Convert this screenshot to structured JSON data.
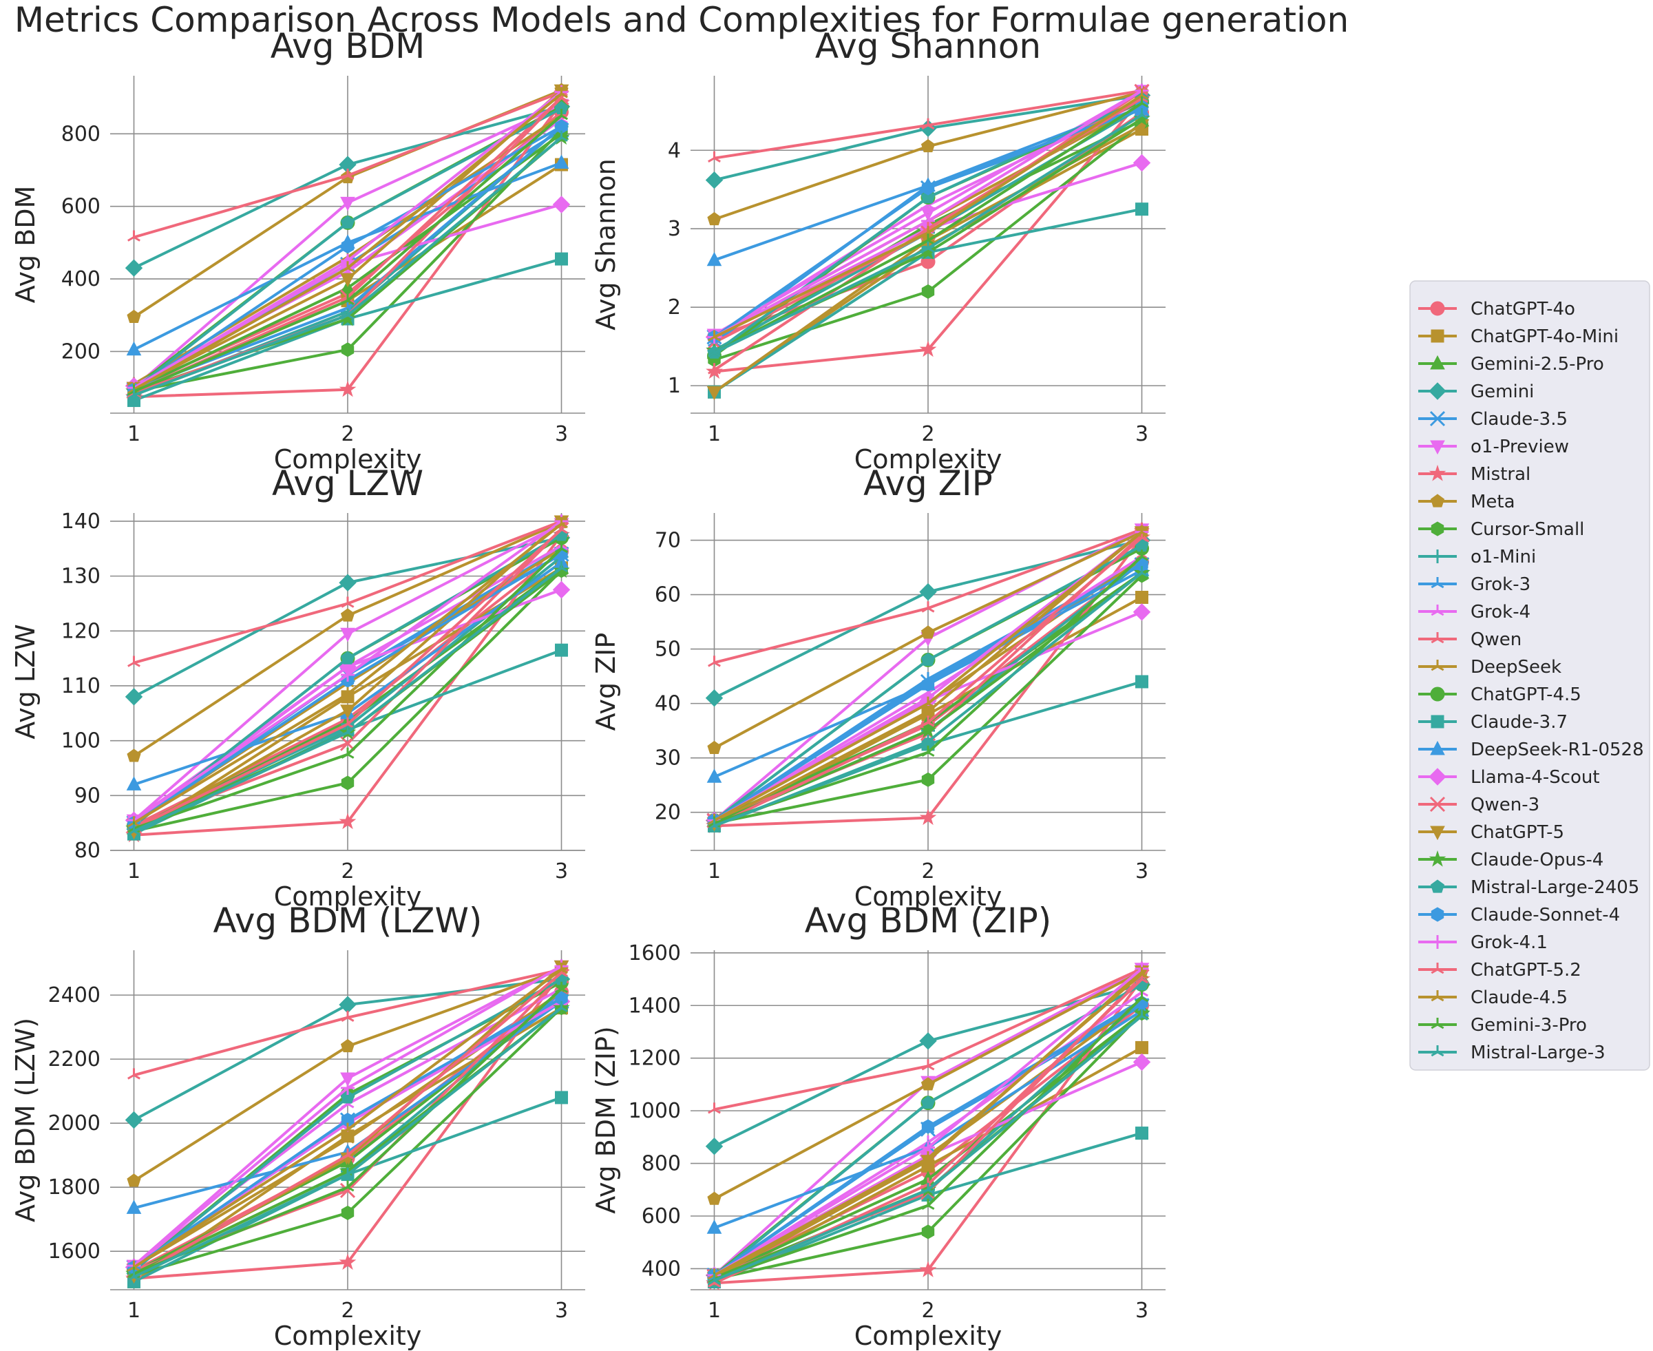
{
  "title": "Metrics Comparison Across Models and Complexities for Formulae generation",
  "chart_data": {
    "type": "line",
    "x": [
      1,
      2,
      3
    ],
    "series_styles": [
      {
        "name": "ChatGPT-4o",
        "color": "#f0687b",
        "marker": "circle"
      },
      {
        "name": "ChatGPT-4o-Mini",
        "color": "#b8922e",
        "marker": "square"
      },
      {
        "name": "Gemini-2.5-Pro",
        "color": "#4fae3a",
        "marker": "triangle-up"
      },
      {
        "name": "Gemini",
        "color": "#36a9a0",
        "marker": "diamond"
      },
      {
        "name": "Claude-3.5",
        "color": "#3c9ae0",
        "marker": "x"
      },
      {
        "name": "o1-Preview",
        "color": "#e86af0",
        "marker": "triangle-down"
      },
      {
        "name": "Mistral",
        "color": "#f0687b",
        "marker": "star"
      },
      {
        "name": "Meta",
        "color": "#b8922e",
        "marker": "pentagon"
      },
      {
        "name": "Cursor-Small",
        "color": "#4fae3a",
        "marker": "hexagon"
      },
      {
        "name": "o1-Mini",
        "color": "#36a9a0",
        "marker": "plus"
      },
      {
        "name": "Grok-3",
        "color": "#3c9ae0",
        "marker": "tri"
      },
      {
        "name": "Grok-4",
        "color": "#e86af0",
        "marker": "tri"
      },
      {
        "name": "Qwen",
        "color": "#f0687b",
        "marker": "tri"
      },
      {
        "name": "DeepSeek",
        "color": "#b8922e",
        "marker": "tri"
      },
      {
        "name": "ChatGPT-4.5",
        "color": "#4fae3a",
        "marker": "circle"
      },
      {
        "name": "Claude-3.7",
        "color": "#36a9a0",
        "marker": "square"
      },
      {
        "name": "DeepSeek-R1-0528",
        "color": "#3c9ae0",
        "marker": "triangle-up"
      },
      {
        "name": "Llama-4-Scout",
        "color": "#e86af0",
        "marker": "diamond"
      },
      {
        "name": "Qwen-3",
        "color": "#f0687b",
        "marker": "x"
      },
      {
        "name": "ChatGPT-5",
        "color": "#b8922e",
        "marker": "triangle-down"
      },
      {
        "name": "Claude-Opus-4",
        "color": "#4fae3a",
        "marker": "star"
      },
      {
        "name": "Mistral-Large-2405",
        "color": "#36a9a0",
        "marker": "pentagon"
      },
      {
        "name": "Claude-Sonnet-4",
        "color": "#3c9ae0",
        "marker": "hexagon"
      },
      {
        "name": "Grok-4.1",
        "color": "#e86af0",
        "marker": "plus"
      },
      {
        "name": "ChatGPT-5.2",
        "color": "#f0687b",
        "marker": "tri"
      },
      {
        "name": "Claude-4.5",
        "color": "#b8922e",
        "marker": "tri"
      },
      {
        "name": "Gemini-3-Pro",
        "color": "#4fae3a",
        "marker": "tri"
      },
      {
        "name": "Mistral-Large-3",
        "color": "#36a9a0",
        "marker": "tri"
      }
    ],
    "legend_position": "center-right",
    "subplots": [
      {
        "title": "Avg BDM",
        "xlabel": "Complexity",
        "ylabel": "Avg BDM",
        "xticks": [
          "1",
          "2",
          "3"
        ],
        "yticks": [
          200,
          400,
          600,
          800
        ],
        "ylim": [
          30,
          960
        ],
        "values": [
          [
            100,
            360,
            860
          ],
          [
            90,
            340,
            715
          ],
          [
            95,
            375,
            800
          ],
          [
            430,
            715,
            875
          ],
          [
            95,
            440,
            810
          ],
          [
            100,
            610,
            880
          ],
          [
            75,
            95,
            885
          ],
          [
            295,
            680,
            920
          ],
          [
            90,
            205,
            810
          ],
          [
            80,
            310,
            820
          ],
          [
            95,
            320,
            820
          ],
          [
            110,
            420,
            840
          ],
          [
            515,
            685,
            915
          ],
          [
            110,
            460,
            850
          ],
          [
            100,
            555,
            875
          ],
          [
            65,
            290,
            455
          ],
          [
            205,
            500,
            720
          ],
          [
            105,
            440,
            605
          ],
          [
            90,
            350,
            900
          ],
          [
            100,
            400,
            920
          ],
          [
            90,
            290,
            790
          ],
          [
            95,
            555,
            870
          ],
          [
            95,
            490,
            820
          ],
          [
            100,
            450,
            915
          ],
          [
            85,
            300,
            900
          ],
          [
            95,
            430,
            910
          ],
          [
            90,
            340,
            850
          ],
          [
            80,
            300,
            790
          ]
        ]
      },
      {
        "title": "Avg Shannon",
        "xlabel": "Complexity",
        "ylabel": "Avg Shannon",
        "xticks": [
          "1",
          "2",
          "3"
        ],
        "yticks": [
          1,
          2,
          3,
          4
        ],
        "ylim": [
          0.65,
          4.95
        ],
        "values": [
          [
            1.62,
            2.58,
            4.48
          ],
          [
            0.92,
            2.78,
            4.27
          ],
          [
            1.42,
            3.05,
            4.38
          ],
          [
            3.62,
            4.28,
            4.7
          ],
          [
            1.62,
            3.52,
            4.52
          ],
          [
            1.65,
            3.2,
            4.76
          ],
          [
            1.18,
            1.46,
            4.66
          ],
          [
            3.12,
            4.05,
            4.74
          ],
          [
            1.33,
            2.2,
            4.35
          ],
          [
            1.45,
            2.95,
            4.55
          ],
          [
            1.55,
            3.55,
            4.6
          ],
          [
            1.62,
            3.3,
            4.62
          ],
          [
            3.9,
            4.32,
            4.76
          ],
          [
            1.62,
            3.1,
            4.58
          ],
          [
            1.38,
            3.4,
            4.62
          ],
          [
            0.92,
            2.7,
            3.25
          ],
          [
            2.6,
            3.55,
            4.52
          ],
          [
            1.62,
            3.0,
            3.84
          ],
          [
            1.55,
            2.95,
            4.75
          ],
          [
            0.92,
            2.85,
            4.32
          ],
          [
            1.45,
            2.7,
            4.4
          ],
          [
            1.42,
            3.4,
            4.65
          ],
          [
            1.62,
            3.52,
            4.55
          ],
          [
            1.62,
            3.1,
            4.76
          ],
          [
            1.2,
            3.0,
            4.66
          ],
          [
            1.62,
            2.95,
            4.7
          ],
          [
            1.42,
            2.85,
            4.6
          ],
          [
            1.42,
            2.75,
            4.45
          ]
        ]
      },
      {
        "title": "Avg LZW",
        "xlabel": "Complexity",
        "ylabel": "Avg LZW",
        "xticks": [
          "1",
          "2",
          "3"
        ],
        "yticks": [
          80,
          90,
          100,
          110,
          120,
          130,
          140
        ],
        "ylim": [
          80,
          141.5
        ],
        "values": [
          [
            84.5,
            104.0,
            134.5
          ],
          [
            83.0,
            108.0,
            131.5
          ],
          [
            84.0,
            103.5,
            131.5
          ],
          [
            108.0,
            128.8,
            137.0
          ],
          [
            85.0,
            112.0,
            134.0
          ],
          [
            85.5,
            119.5,
            139.5
          ],
          [
            82.8,
            85.2,
            137.5
          ],
          [
            97.2,
            122.8,
            139.8
          ],
          [
            83.5,
            92.3,
            131.0
          ],
          [
            84.0,
            102.5,
            133.5
          ],
          [
            85.0,
            112.0,
            135.0
          ],
          [
            85.0,
            113.5,
            135.5
          ],
          [
            114.2,
            125.0,
            140.0
          ],
          [
            85.0,
            110.5,
            135.0
          ],
          [
            84.5,
            115.0,
            137.0
          ],
          [
            83.0,
            102.0,
            116.5
          ],
          [
            92.0,
            105.0,
            132.5
          ],
          [
            85.5,
            113.5,
            127.5
          ],
          [
            84.5,
            99.5,
            138.5
          ],
          [
            83.5,
            105.5,
            140.0
          ],
          [
            84.0,
            101.5,
            131.0
          ],
          [
            84.5,
            115.0,
            137.5
          ],
          [
            85.0,
            111.0,
            134.0
          ],
          [
            85.5,
            112.0,
            140.0
          ],
          [
            84.0,
            103.0,
            138.5
          ],
          [
            85.0,
            108.5,
            139.5
          ],
          [
            84.0,
            97.5,
            135.0
          ],
          [
            83.5,
            101.5,
            131.5
          ]
        ]
      },
      {
        "title": "Avg ZIP",
        "xlabel": "Complexity",
        "ylabel": "Avg ZIP",
        "xticks": [
          "1",
          "2",
          "3"
        ],
        "yticks": [
          20,
          30,
          40,
          50,
          60,
          70
        ],
        "ylim": [
          13,
          75
        ],
        "values": [
          [
            18.5,
            36.0,
            66.0
          ],
          [
            17.5,
            38.0,
            59.5
          ],
          [
            18.5,
            36.5,
            64.0
          ],
          [
            41.0,
            60.5,
            70.0
          ],
          [
            18.5,
            44.0,
            65.5
          ],
          [
            18.5,
            52.0,
            72.0
          ],
          [
            17.5,
            19.0,
            70.5
          ],
          [
            31.8,
            53.0,
            71.5
          ],
          [
            18.0,
            26.0,
            63.5
          ],
          [
            18.0,
            35.0,
            66.0
          ],
          [
            18.5,
            44.5,
            66.0
          ],
          [
            18.5,
            42.0,
            67.0
          ],
          [
            47.5,
            57.5,
            72.0
          ],
          [
            18.5,
            40.0,
            66.5
          ],
          [
            18.5,
            48.0,
            68.5
          ],
          [
            17.5,
            32.5,
            44.0
          ],
          [
            26.5,
            43.5,
            64.5
          ],
          [
            18.5,
            40.5,
            56.8
          ],
          [
            18.5,
            34.5,
            71.0
          ],
          [
            18.0,
            38.5,
            71.5
          ],
          [
            18.0,
            35.0,
            64.0
          ],
          [
            18.5,
            48.0,
            69.0
          ],
          [
            18.5,
            43.5,
            65.5
          ],
          [
            18.5,
            41.0,
            71.5
          ],
          [
            17.5,
            36.5,
            70.5
          ],
          [
            18.5,
            40.0,
            71.5
          ],
          [
            18.0,
            31.0,
            67.0
          ],
          [
            17.5,
            33.0,
            64.0
          ]
        ]
      },
      {
        "title": "Avg BDM (LZW)",
        "xlabel": "Complexity",
        "ylabel": "Avg BDM (LZW)",
        "xticks": [
          "1",
          "2",
          "3"
        ],
        "yticks": [
          1600,
          1800,
          2000,
          2200,
          2400
        ],
        "ylim": [
          1480,
          2540
        ],
        "values": [
          [
            1540,
            1890,
            2410
          ],
          [
            1505,
            1960,
            2360
          ],
          [
            1535,
            1880,
            2400
          ],
          [
            2010,
            2370,
            2450
          ],
          [
            1550,
            2010,
            2380
          ],
          [
            1555,
            2140,
            2490
          ],
          [
            1515,
            1565,
            2470
          ],
          [
            1820,
            2240,
            2480
          ],
          [
            1525,
            1720,
            2360
          ],
          [
            1530,
            1850,
            2400
          ],
          [
            1550,
            2000,
            2400
          ],
          [
            1555,
            2060,
            2420
          ],
          [
            2150,
            2330,
            2480
          ],
          [
            1550,
            1950,
            2410
          ],
          [
            1540,
            2090,
            2440
          ],
          [
            1505,
            1840,
            2080
          ],
          [
            1735,
            1910,
            2380
          ],
          [
            1550,
            2000,
            2380
          ],
          [
            1540,
            1790,
            2460
          ],
          [
            1525,
            1890,
            2490
          ],
          [
            1530,
            1850,
            2360
          ],
          [
            1540,
            2080,
            2450
          ],
          [
            1550,
            2010,
            2390
          ],
          [
            1555,
            2110,
            2490
          ],
          [
            1520,
            1900,
            2470
          ],
          [
            1550,
            1980,
            2480
          ],
          [
            1530,
            1800,
            2420
          ],
          [
            1520,
            1840,
            2360
          ]
        ]
      },
      {
        "title": "Avg BDM (ZIP)",
        "xlabel": "Complexity",
        "ylabel": "Avg BDM (ZIP)",
        "xticks": [
          "1",
          "2",
          "3"
        ],
        "yticks": [
          400,
          600,
          800,
          1000,
          1200,
          1400,
          1600
        ],
        "ylim": [
          320,
          1610
        ],
        "values": [
          [
            370,
            770,
            1400
          ],
          [
            350,
            790,
            1240
          ],
          [
            370,
            740,
            1370
          ],
          [
            865,
            1265,
            1480
          ],
          [
            375,
            930,
            1400
          ],
          [
            375,
            1110,
            1540
          ],
          [
            345,
            395,
            1500
          ],
          [
            665,
            1100,
            1530
          ],
          [
            360,
            540,
            1370
          ],
          [
            360,
            700,
            1420
          ],
          [
            375,
            930,
            1420
          ],
          [
            375,
            880,
            1450
          ],
          [
            1005,
            1170,
            1540
          ],
          [
            375,
            830,
            1420
          ],
          [
            375,
            1030,
            1480
          ],
          [
            350,
            680,
            915
          ],
          [
            555,
            860,
            1380
          ],
          [
            375,
            830,
            1185
          ],
          [
            370,
            690,
            1510
          ],
          [
            365,
            810,
            1530
          ],
          [
            365,
            700,
            1370
          ],
          [
            370,
            1030,
            1480
          ],
          [
            375,
            940,
            1410
          ],
          [
            375,
            860,
            1540
          ],
          [
            345,
            720,
            1500
          ],
          [
            375,
            820,
            1520
          ],
          [
            360,
            640,
            1430
          ],
          [
            355,
            700,
            1360
          ]
        ]
      }
    ]
  }
}
